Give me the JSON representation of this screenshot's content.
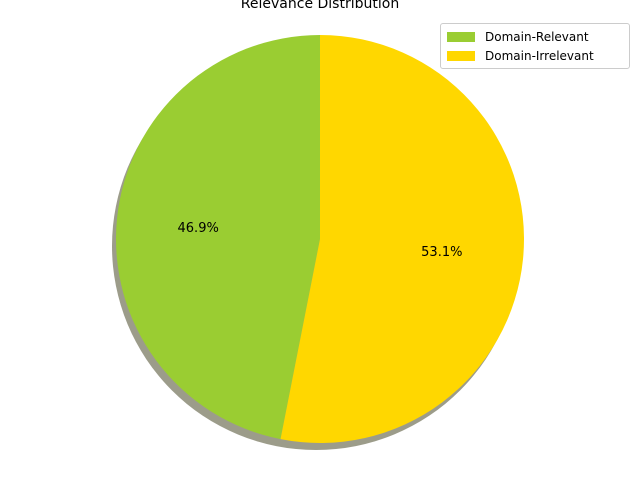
{
  "chart_data": {
    "type": "pie",
    "title": "Relevance Distribution",
    "labels": [
      "Domain-Relevant",
      "Domain-Irrelevant"
    ],
    "values": [
      46.9,
      53.1
    ],
    "autopct": [
      "46.9%",
      "53.1%"
    ],
    "colors": [
      "#9acd32",
      "#ffd700"
    ],
    "shadow": true,
    "legend_loc": "upper right",
    "start_angle": 90,
    "direction": "counterclockwise"
  }
}
